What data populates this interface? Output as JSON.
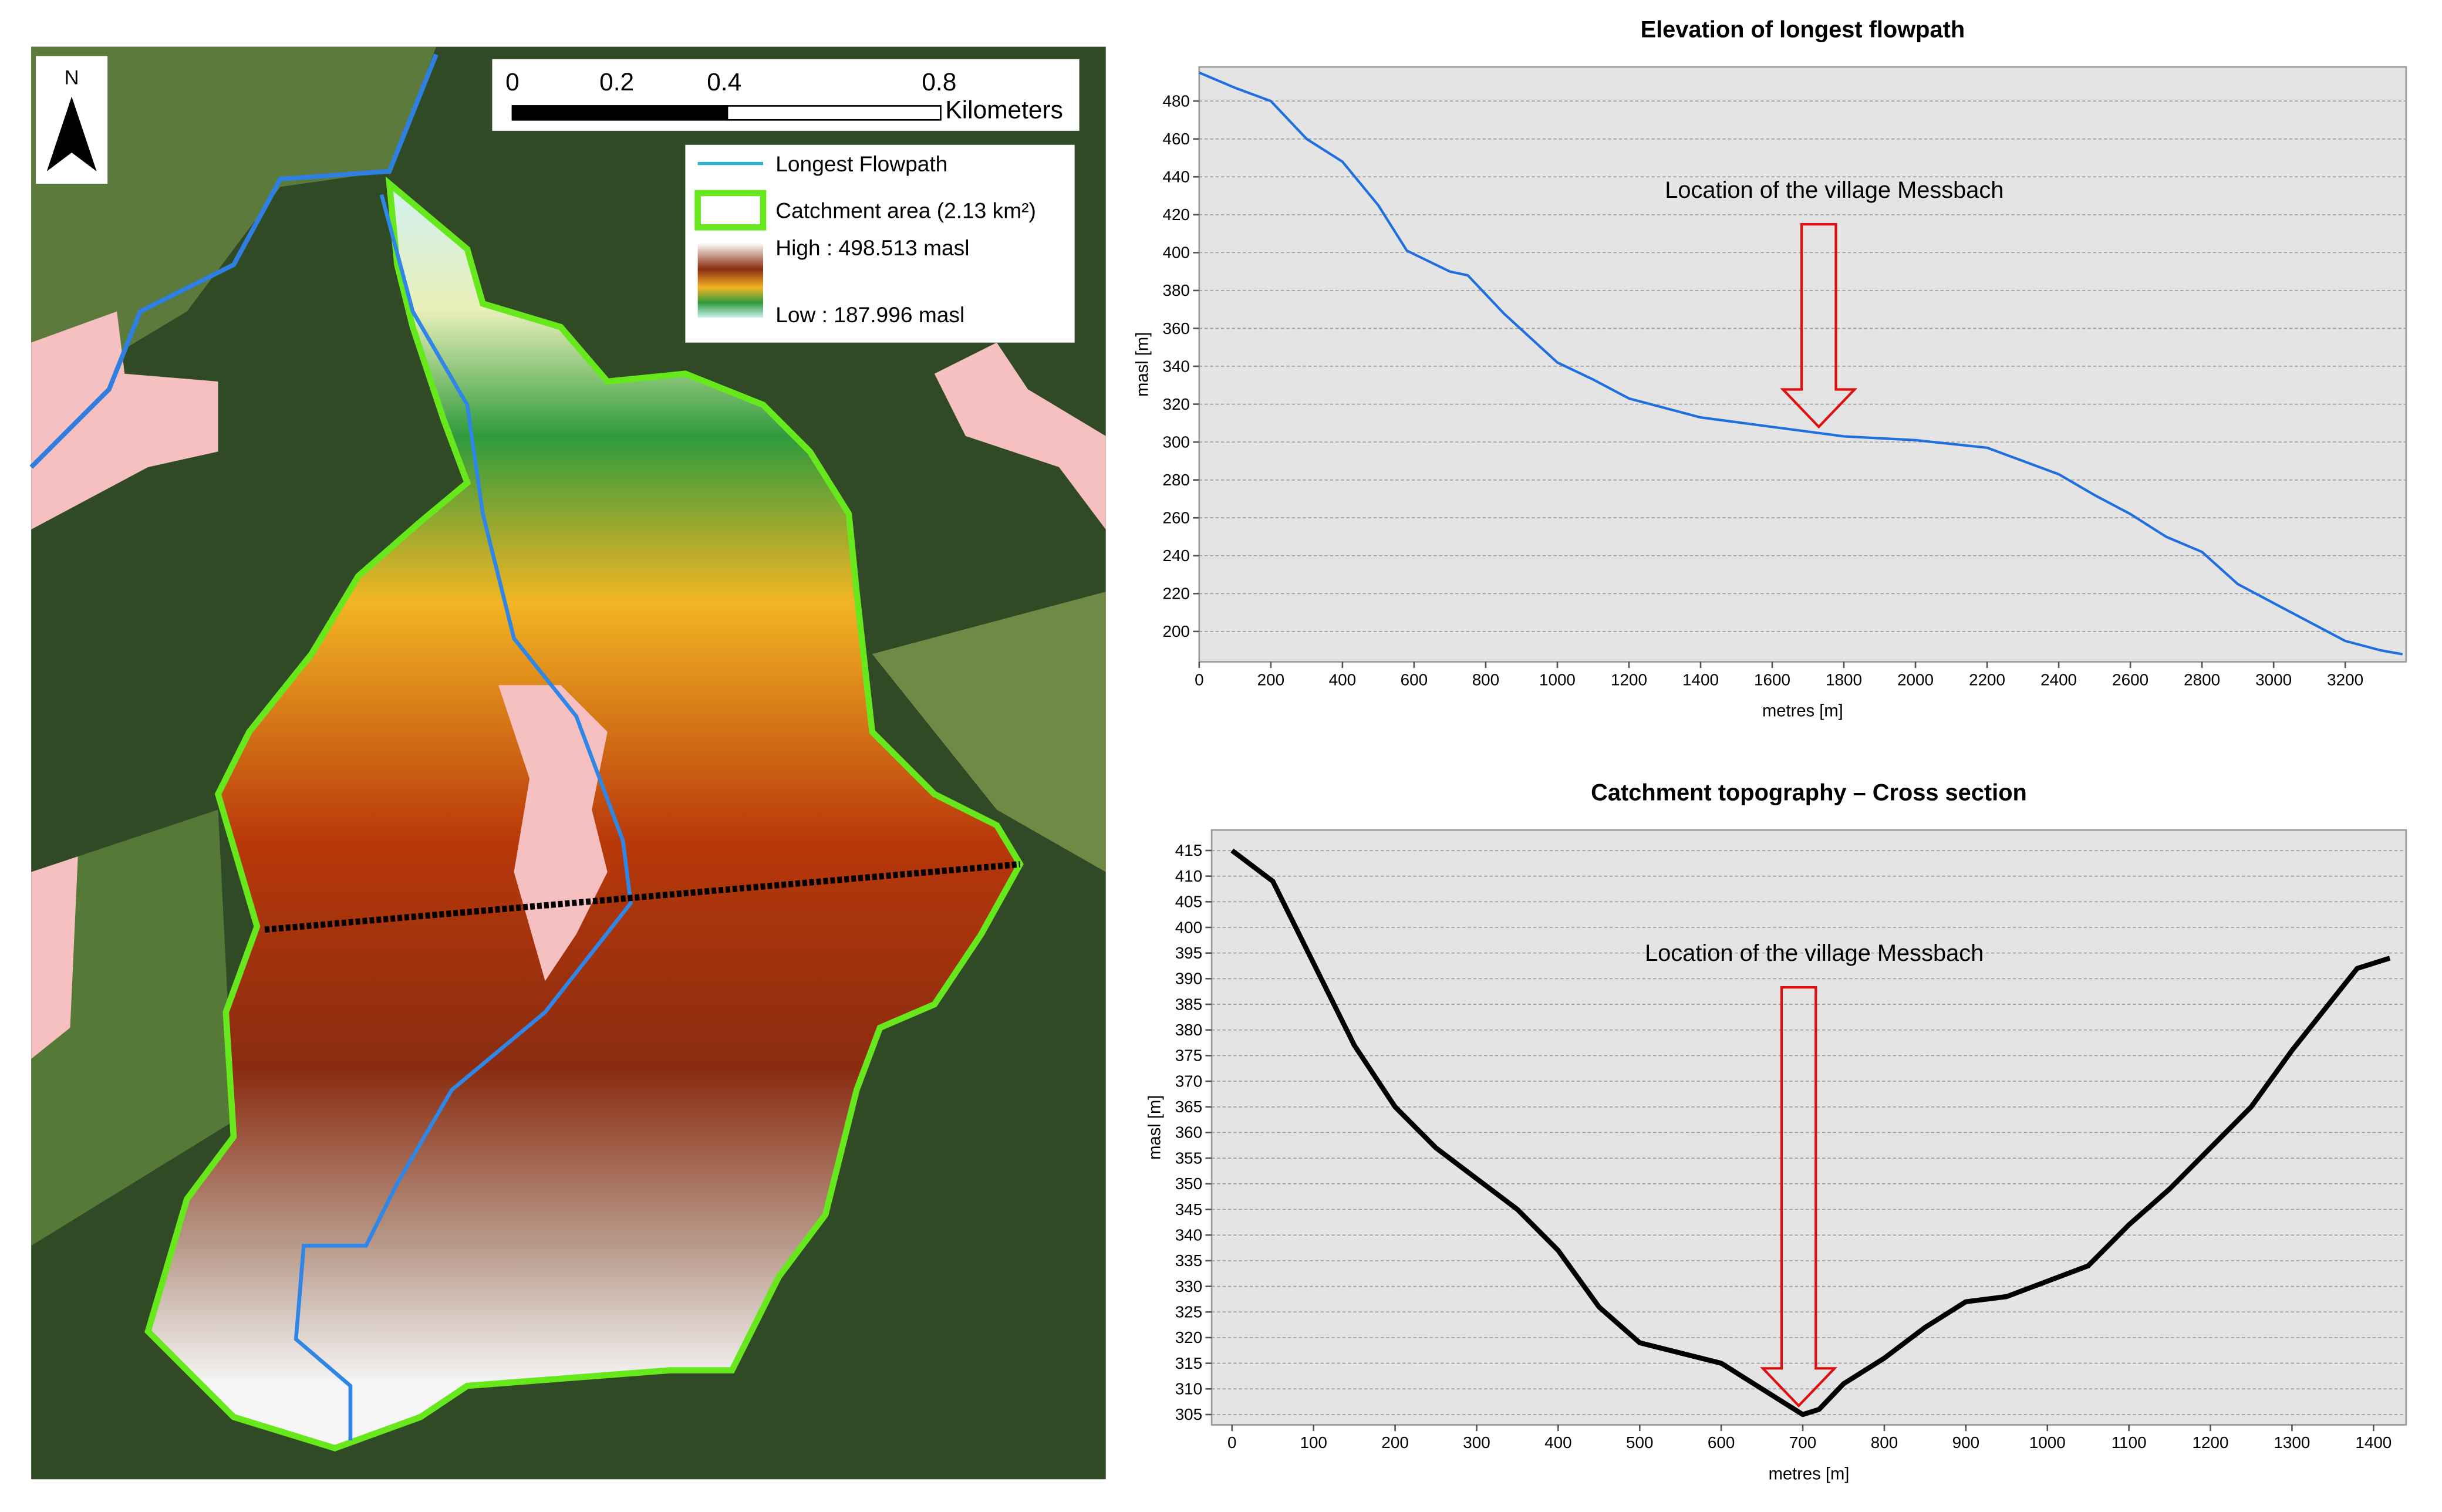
{
  "map": {
    "north": "N",
    "scale_labels": [
      "0",
      "0.2",
      "0.4",
      "0.8"
    ],
    "scale_unit": "Kilometers",
    "legend": {
      "flowpath": "Longest Flowpath",
      "catchment": "Catchment area (2.13 km²)",
      "high": "High : 498.513 masl",
      "low": "Low : 187.996 masl"
    }
  },
  "chart_data": [
    {
      "type": "line",
      "title": "Elevation of longest flowpath",
      "x_label": "metres [m]",
      "y_label": "masl [m]",
      "annotation": {
        "text": "Location of the village Messbach",
        "x": 1730
      },
      "x": [
        0,
        100,
        200,
        300,
        400,
        500,
        580,
        700,
        750,
        850,
        1000,
        1100,
        1200,
        1400,
        1600,
        1800,
        2000,
        2200,
        2300,
        2400,
        2500,
        2600,
        2700,
        2800,
        2900,
        3000,
        3100,
        3200,
        3300,
        3360
      ],
      "series": [
        {
          "name": "Longest flowpath",
          "color": "#1f6fe0",
          "values": [
            495,
            487,
            480,
            460,
            448,
            425,
            401,
            390,
            388,
            368,
            342,
            333,
            323,
            313,
            308,
            303,
            301,
            297,
            290,
            283,
            272,
            262,
            250,
            242,
            225,
            215,
            205,
            195,
            190,
            188
          ]
        }
      ],
      "xlim": [
        0,
        3370
      ],
      "ylim": [
        184,
        498
      ],
      "xticks": [
        0,
        200,
        400,
        600,
        800,
        1000,
        1200,
        1400,
        1600,
        1800,
        2000,
        2200,
        2400,
        2600,
        2800,
        3000,
        3200
      ],
      "yticks": [
        200,
        220,
        240,
        260,
        280,
        300,
        320,
        340,
        360,
        380,
        400,
        420,
        440,
        460,
        480
      ],
      "grid": true
    },
    {
      "type": "line",
      "title": "Catchment topography – Cross section",
      "x_label": "metres [m]",
      "y_label": "masl [m]",
      "annotation": {
        "text": "Location of the village Messbach",
        "x": 695
      },
      "x": [
        0,
        50,
        100,
        150,
        200,
        250,
        300,
        350,
        400,
        450,
        500,
        550,
        600,
        650,
        700,
        720,
        750,
        800,
        850,
        900,
        950,
        1000,
        1050,
        1100,
        1150,
        1200,
        1250,
        1300,
        1350,
        1380,
        1420
      ],
      "series": [
        {
          "name": "Cross section",
          "color": "#000000",
          "values": [
            415,
            409,
            393,
            377,
            365,
            357,
            351,
            345,
            337,
            326,
            319,
            317,
            315,
            310,
            305,
            306,
            311,
            316,
            322,
            327,
            328,
            331,
            334,
            342,
            349,
            357,
            365,
            376,
            386,
            392,
            394
          ]
        }
      ],
      "xlim": [
        -25,
        1440
      ],
      "ylim": [
        303,
        419
      ],
      "xticks": [
        0,
        100,
        200,
        300,
        400,
        500,
        600,
        700,
        800,
        900,
        1000,
        1100,
        1200,
        1300,
        1400
      ],
      "yticks": [
        305,
        310,
        315,
        320,
        325,
        330,
        335,
        340,
        345,
        350,
        355,
        360,
        365,
        370,
        375,
        380,
        385,
        390,
        395,
        400,
        405,
        410,
        415
      ],
      "grid": true
    }
  ]
}
